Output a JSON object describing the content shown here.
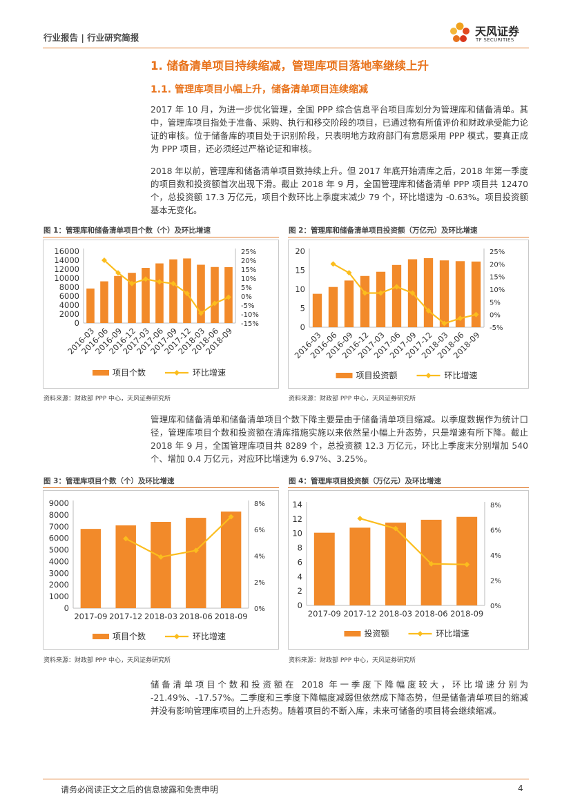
{
  "header": {
    "left_text": "行业报告 | 行业研究简报",
    "logo_name": "天风证券",
    "logo_sub": "TF SECURITIES",
    "logo_icon": "flower-logo-icon"
  },
  "section": {
    "h1": "1. 储备清单项目持续缩减，管理库项目落地率继续上升",
    "h2": "1.1. 管理库项目小幅上升，储备清单项目连续缩减"
  },
  "paragraphs": [
    "2017 年 10 月，为进一步优化管理，全国 PPP 综合信息平台项目库划分为管理库和储备清单。其中，管理库项目指处于准备、采购、执行和移交阶段的项目，已通过物有所值评价和财政承受能力论证的审核。位于储备库的项目处于识别阶段，只表明地方政府部门有意愿采用 PPP 模式，要真正成为 PPP 项目，还必须经过严格论证和审核。",
    "2018 年以前，管理库和储备清单项目数持续上升。但 2017 年底开始清库之后，2018 年第一季度的项目数和投资额首次出现下滑。截止 2018 年 9 月，全国管理库和储备清单 PPP 项目共 12470 个，总投资额 17.3 万亿元，项目个数环比上季度末减少 79 个，环比增速为 -0.63%。项目投资额基本无变化。",
    "管理库和储备清单和储备清单项目个数下降主要是由于储备清单项目缩减。以季度数据作为统计口径，管理库项目个数和投资额在清库措施实施以来依然呈小幅上升态势，只是增速有所下降。截止 2018 年 9 月，全国管理库项目共 8289 个，总投资额 12.3 万亿元，环比上季度末分别增加 540 个、增加 0.4 万亿元，对应环比增速为 6.97%、3.25%。",
    "储备清单项目个数和投资额在 2018 年一季度下降幅度较大，环比增速分别为 -21.49%、-17.57%。二季度和三季度下降幅度减弱但依然成下降态势，但是储备清单项目的缩减并没有影响管理库项目的上升态势。随着项目的不断入库，未来可储备的项目将会继续缩减。"
  ],
  "figures": [
    {
      "title": "图 1：管理库和储备清单项目个数（个）及环比增速",
      "source": "资料来源：财政部 PPP 中心，天风证券研究所"
    },
    {
      "title": "图 2：管理库和储备清单项目投资额（万亿元）及环比增速",
      "source": "资料来源：财政部 PPP 中心，天风证券研究所"
    },
    {
      "title": "图 3：管理库项目个数（个）及环比增速",
      "source": "资料来源：财政部 PPP 中心，天风证券研究所"
    },
    {
      "title": "图 4：管理库项目投资额（万亿元）及环比增速",
      "source": "资料来源：财政部 PPP 中心，天风证券研究所"
    }
  ],
  "footer": {
    "disclaimer": "请务必阅读正文之后的信息披露和免责申明",
    "page": "4"
  },
  "colors": {
    "accent": "#e8731c",
    "bar": "#f28a2a",
    "line": "#fbbd1e"
  },
  "chart_data": [
    {
      "type": "bar",
      "categories": [
        "2016-03",
        "2016-06",
        "2016-09",
        "2016-12",
        "2017-03",
        "2017-06",
        "2017-09",
        "2017-12",
        "2018-03",
        "2018-06",
        "2018-09"
      ],
      "series": [
        {
          "name": "项目个数",
          "kind": "bar",
          "axis": "left",
          "values": [
            7700,
            9300,
            10500,
            11200,
            12300,
            13300,
            14200,
            14400,
            13000,
            12500,
            12470
          ]
        },
        {
          "name": "环比增速",
          "kind": "line",
          "axis": "right",
          "values": [
            null,
            20.0,
            13.0,
            7.0,
            9.5,
            8.0,
            7.0,
            1.5,
            -9.5,
            -4.0,
            -0.6
          ]
        }
      ],
      "left_axis": {
        "min": 0,
        "max": 16000,
        "ticks": [
          "0",
          "2000",
          "4000",
          "6000",
          "8000",
          "10000",
          "12000",
          "14000",
          "16000"
        ]
      },
      "right_axis": {
        "min": -15,
        "max": 25,
        "ticks": [
          "-15%",
          "-10%",
          "-5%",
          "0%",
          "5%",
          "10%",
          "15%",
          "20%",
          "25%"
        ]
      },
      "legend": [
        "项目个数",
        "环比增速"
      ]
    },
    {
      "type": "bar",
      "categories": [
        "2016-03",
        "2016-06",
        "2016-09",
        "2016-12",
        "2017-03",
        "2017-06",
        "2017-09",
        "2017-12",
        "2018-03",
        "2018-06",
        "2018-09"
      ],
      "series": [
        {
          "name": "项目投资额",
          "kind": "bar",
          "axis": "left",
          "values": [
            8.8,
            10.6,
            12.3,
            13.5,
            14.6,
            16.4,
            17.9,
            18.2,
            17.6,
            17.4,
            17.3
          ]
        },
        {
          "name": "环比增速",
          "kind": "line",
          "axis": "right",
          "values": [
            null,
            20.0,
            16.5,
            8.5,
            8.5,
            11.0,
            8.5,
            1.5,
            -3.5,
            -1.5,
            0.0
          ]
        }
      ],
      "left_axis": {
        "min": 0,
        "max": 20,
        "ticks": [
          "0",
          "5",
          "10",
          "15",
          "20"
        ]
      },
      "right_axis": {
        "min": -5,
        "max": 25,
        "ticks": [
          "-5%",
          "0%",
          "5%",
          "10%",
          "15%",
          "20%",
          "25%"
        ]
      },
      "legend": [
        "项目投资额",
        "环比增速"
      ]
    },
    {
      "type": "bar",
      "categories": [
        "2017-09",
        "2017-12",
        "2018-03",
        "2018-06",
        "2018-09"
      ],
      "series": [
        {
          "name": "项目个数",
          "kind": "bar",
          "axis": "left",
          "values": [
            6800,
            7100,
            7400,
            7750,
            8289
          ]
        },
        {
          "name": "环比增速",
          "kind": "line",
          "axis": "right",
          "values": [
            null,
            5.3,
            3.9,
            4.4,
            6.97
          ]
        }
      ],
      "left_axis": {
        "min": 0,
        "max": 9000,
        "ticks": [
          "0",
          "1000",
          "2000",
          "3000",
          "4000",
          "5000",
          "6000",
          "7000",
          "8000",
          "9000"
        ]
      },
      "right_axis": {
        "min": 0,
        "max": 8,
        "ticks": [
          "0%",
          "2%",
          "4%",
          "6%",
          "8%"
        ]
      },
      "legend": [
        "项目个数",
        "环比增速"
      ]
    },
    {
      "type": "bar",
      "categories": [
        "2017-09",
        "2017-12",
        "2018-03",
        "2018-06",
        "2018-09"
      ],
      "series": [
        {
          "name": "投资额",
          "kind": "bar",
          "axis": "left",
          "values": [
            10.1,
            10.8,
            11.5,
            11.9,
            12.3
          ]
        },
        {
          "name": "环比增速",
          "kind": "line",
          "axis": "right",
          "values": [
            null,
            6.9,
            6.1,
            3.3,
            3.25
          ]
        }
      ],
      "left_axis": {
        "min": 0,
        "max": 14,
        "ticks": [
          "0",
          "2",
          "4",
          "6",
          "8",
          "10",
          "12",
          "14"
        ]
      },
      "right_axis": {
        "min": 0,
        "max": 8,
        "ticks": [
          "0%",
          "2%",
          "4%",
          "6%",
          "8%"
        ]
      },
      "legend": [
        "投资额",
        "环比增速"
      ]
    }
  ]
}
